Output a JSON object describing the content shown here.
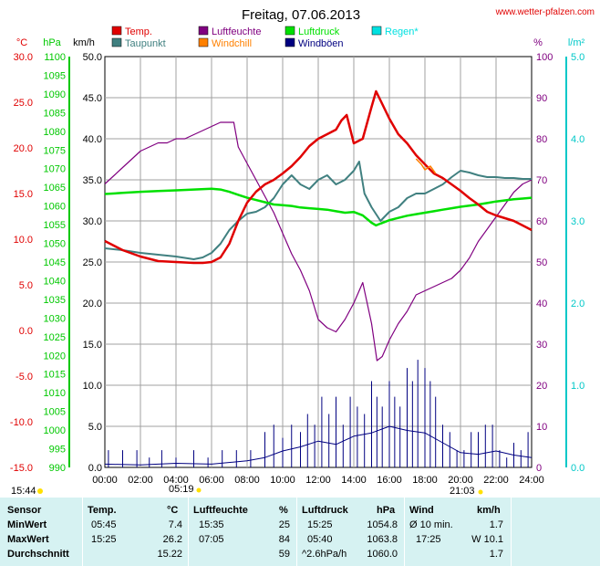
{
  "chart_data": {
    "type": "line",
    "title": "Freitag, 07.06.2013",
    "source": "www.wetter-pfalzen.com",
    "axes": {
      "temp": {
        "unit": "°C",
        "ticks": [
          "30.0",
          "25.0",
          "20.0",
          "15.0",
          "10.0",
          "5.0",
          "0.0",
          "-5.0",
          "-10.0",
          "-15.0"
        ],
        "range": [
          -15,
          30
        ],
        "color": "#e00000"
      },
      "pressure": {
        "unit": "hPa",
        "ticks": [
          "1100",
          "1095",
          "1090",
          "1085",
          "1080",
          "1075",
          "1070",
          "1065",
          "1060",
          "1055",
          "1050",
          "1045",
          "1040",
          "1035",
          "1030",
          "1025",
          "1020",
          "1015",
          "1010",
          "1005",
          "1000",
          "995",
          "990"
        ],
        "range": [
          990,
          1100
        ],
        "color": "#00c800"
      },
      "wind": {
        "unit": "km/h",
        "ticks": [
          "50.0",
          "45.0",
          "40.0",
          "35.0",
          "30.0",
          "25.0",
          "20.0",
          "15.0",
          "10.0",
          "5.0",
          "0.0"
        ],
        "range": [
          0,
          50
        ],
        "color": "#000000"
      },
      "humidity": {
        "unit": "%",
        "ticks": [
          "100",
          "90",
          "80",
          "70",
          "60",
          "50",
          "40",
          "30",
          "20",
          "10",
          "0"
        ],
        "range": [
          0,
          100
        ],
        "color": "#800080"
      },
      "rain": {
        "unit": "l/m²",
        "ticks": [
          "5.0",
          "4.0",
          "3.0",
          "2.0",
          "1.0",
          "0.0"
        ],
        "range": [
          0,
          5
        ],
        "color": "#00c8c8"
      }
    },
    "x_ticks": [
      "00:00",
      "02:00",
      "04:00",
      "06:00",
      "08:00",
      "10:00",
      "12:00",
      "14:00",
      "16:00",
      "18:00",
      "20:00",
      "22:00",
      "24:00"
    ],
    "sunrise": "05:19",
    "sunset": "21:03",
    "daylight_start": "15:44",
    "grid": true,
    "legend": [
      {
        "label": "Temp.",
        "color": "#e00000"
      },
      {
        "label": "Luftfeuchte",
        "color": "#800080"
      },
      {
        "label": "Luftdruck",
        "color": "#00e000"
      },
      {
        "label": "Regen*",
        "color": "#00e0e0"
      },
      {
        "label": "Taupunkt",
        "color": "#408080"
      },
      {
        "label": "Windchill",
        "color": "#ff8000"
      },
      {
        "label": "Windböen",
        "color": "#000080"
      }
    ],
    "series": [
      {
        "name": "Temp.",
        "x": [
          0,
          1,
          2,
          3,
          4,
          5,
          5.5,
          6,
          6.5,
          7,
          7.5,
          8,
          8.5,
          9,
          9.5,
          10,
          10.5,
          11,
          11.5,
          12,
          12.5,
          13,
          13.3,
          13.6,
          14,
          14.5,
          15,
          15.25,
          15.5,
          16,
          16.5,
          17,
          17.5,
          18,
          18.5,
          19,
          19.5,
          20,
          20.5,
          21,
          21.5,
          22,
          22.5,
          23,
          23.5,
          24
        ],
        "y": [
          9.8,
          8.8,
          8.1,
          7.6,
          7.5,
          7.4,
          7.4,
          7.5,
          8.0,
          9.5,
          12.0,
          14.0,
          15.2,
          16.0,
          16.5,
          17.2,
          18.0,
          19.0,
          20.2,
          21.0,
          21.5,
          22.0,
          23.0,
          23.6,
          20.5,
          21.0,
          24.5,
          26.2,
          25.2,
          23.2,
          21.5,
          20.5,
          19.2,
          18.2,
          17.2,
          16.7,
          16.0,
          15.3,
          14.5,
          13.8,
          13.0,
          12.6,
          12.3,
          12.0,
          11.5,
          11.0
        ]
      },
      {
        "name": "Taupunkt",
        "x": [
          0,
          1,
          2,
          3,
          4,
          5,
          5.5,
          6,
          6.5,
          7,
          7.5,
          8,
          8.5,
          9,
          9.5,
          10,
          10.5,
          11,
          11.5,
          12,
          12.5,
          13,
          13.5,
          14,
          14.3,
          14.6,
          15,
          15.5,
          16,
          16.5,
          17,
          17.5,
          18,
          18.5,
          19,
          19.5,
          20,
          20.5,
          21,
          21.5,
          22,
          22.5,
          23,
          23.5,
          24
        ],
        "y": [
          9.0,
          8.8,
          8.5,
          8.3,
          8.1,
          7.8,
          8.0,
          8.5,
          9.5,
          11.0,
          12.0,
          12.8,
          13.0,
          13.5,
          14.5,
          16.0,
          17.0,
          16.0,
          15.5,
          16.5,
          17.0,
          16.0,
          16.5,
          17.5,
          18.5,
          15.0,
          13.5,
          12.0,
          13.0,
          13.5,
          14.5,
          15.0,
          15.0,
          15.5,
          16.0,
          16.8,
          17.5,
          17.3,
          17.0,
          16.8,
          16.8,
          16.7,
          16.7,
          16.6,
          16.6
        ]
      },
      {
        "name": "Windchill",
        "x": [
          17.5,
          17.8,
          18.0,
          18.3,
          18.6
        ],
        "y": [
          18.8,
          18.2,
          17.6,
          18.0,
          17.2
        ]
      },
      {
        "name": "Luftfeuchte",
        "x": [
          0,
          0.5,
          1,
          1.5,
          2,
          2.5,
          3,
          3.5,
          4,
          4.5,
          5,
          5.5,
          6,
          6.5,
          7,
          7.25,
          7.5,
          8,
          8.5,
          9,
          9.5,
          10,
          10.5,
          11,
          11.5,
          12,
          12.5,
          13,
          13.5,
          14,
          14.5,
          15,
          15.3,
          15.6,
          16,
          16.5,
          17,
          17.5,
          18,
          18.5,
          19,
          19.5,
          20,
          20.5,
          21,
          21.5,
          22,
          22.5,
          23,
          23.5,
          24
        ],
        "y": [
          69,
          71,
          73,
          75,
          77,
          78,
          79,
          79,
          80,
          80,
          81,
          82,
          83,
          84,
          84,
          84,
          78,
          74,
          70,
          66,
          62,
          57,
          52,
          48,
          43,
          36,
          34,
          33,
          36,
          40,
          45,
          35,
          26,
          27,
          31,
          35,
          38,
          42,
          43,
          44,
          45,
          46,
          48,
          51,
          55,
          58,
          61,
          64,
          67,
          69,
          70
        ]
      },
      {
        "name": "Luftdruck",
        "x": [
          0,
          1,
          2,
          3,
          4,
          5,
          6,
          6.5,
          7,
          7.5,
          8,
          8.5,
          9,
          9.5,
          10,
          10.5,
          11,
          11.5,
          12,
          12.5,
          13,
          13.5,
          14,
          14.5,
          15,
          15.25,
          15.5,
          16,
          16.5,
          17,
          17.5,
          18,
          18.5,
          19,
          19.5,
          20,
          20.5,
          21,
          21.5,
          22,
          22.5,
          23,
          23.5,
          24
        ],
        "y": [
          1063.2,
          1063.5,
          1063.8,
          1064.0,
          1064.2,
          1064.4,
          1064.6,
          1064.4,
          1063.8,
          1063.0,
          1062.2,
          1061.6,
          1061.0,
          1060.4,
          1060.2,
          1060.0,
          1059.6,
          1059.4,
          1059.2,
          1059.0,
          1058.6,
          1058.2,
          1058.4,
          1057.5,
          1055.5,
          1054.8,
          1055.3,
          1056.2,
          1056.8,
          1057.4,
          1057.8,
          1058.2,
          1058.6,
          1059.0,
          1059.4,
          1059.8,
          1060.1,
          1060.4,
          1060.8,
          1061.2,
          1061.5,
          1061.8,
          1062.0,
          1062.2
        ]
      },
      {
        "name": "Windböen",
        "bars": true,
        "x": [
          0.2,
          1,
          1.8,
          2.5,
          3.2,
          4,
          5,
          5.8,
          6.6,
          7.4,
          8.2,
          9,
          9.5,
          10,
          10.5,
          11,
          11.4,
          11.8,
          12.2,
          12.6,
          13,
          13.4,
          13.8,
          14.2,
          14.6,
          15,
          15.3,
          15.6,
          16,
          16.3,
          16.6,
          17,
          17.3,
          17.6,
          18,
          18.3,
          18.6,
          19,
          19.4,
          19.8,
          20.2,
          20.6,
          21,
          21.4,
          21.8,
          22.2,
          22.6,
          23,
          23.4,
          23.8
        ],
        "y": [
          2.1,
          2.1,
          2.1,
          1.2,
          2.1,
          1.2,
          2.1,
          1.2,
          2.1,
          2.1,
          2.1,
          4.3,
          5.2,
          3.6,
          5.2,
          4.3,
          6.5,
          5.2,
          8.6,
          6.5,
          8.6,
          5.2,
          8.6,
          7.4,
          6.5,
          10.5,
          8.6,
          7.4,
          10.5,
          8.6,
          7.4,
          12.1,
          10.5,
          13.1,
          12.1,
          10.5,
          8.6,
          5.2,
          4.3,
          2.1,
          2.1,
          4.3,
          4.3,
          5.2,
          5.2,
          2.1,
          1.2,
          3.0,
          2.1,
          4.3
        ]
      },
      {
        "name": "Wind",
        "x": [
          0,
          2,
          4,
          6,
          8,
          9,
          10,
          11,
          12,
          13,
          14,
          15,
          16,
          17,
          18,
          19,
          20,
          21,
          22,
          23,
          24
        ],
        "y": [
          0.4,
          0.3,
          0.5,
          0.4,
          0.8,
          1.2,
          2.0,
          2.5,
          3.2,
          2.8,
          3.8,
          4.2,
          5.0,
          4.5,
          4.2,
          3.0,
          1.8,
          1.6,
          2.0,
          1.5,
          1.2
        ]
      }
    ]
  },
  "stats": {
    "headers": {
      "sensor": "Sensor",
      "temp": "Temp.",
      "temp_unit": "°C",
      "hum": "Luftfeuchte",
      "hum_unit": "%",
      "press": "Luftdruck",
      "press_unit": "hPa",
      "wind": "Wind",
      "wind_unit": "km/h"
    },
    "rows": [
      {
        "label": "MinWert",
        "temp_time": "05:45",
        "temp_val": "7.4",
        "hum_time": "15:35",
        "hum_val": "25",
        "press_time": "15:25",
        "press_val": "1054.8",
        "wind_time": "Ø 10 min.",
        "wind_val": "1.7"
      },
      {
        "label": "MaxWert",
        "temp_time": "15:25",
        "temp_val": "26.2",
        "hum_time": "07:05",
        "hum_val": "84",
        "press_time": "05:40",
        "press_val": "1063.8",
        "wind_time": "17:25",
        "wind_val": "W 10.1"
      },
      {
        "label": "Durchschnitt",
        "temp_time": "",
        "temp_val": "15.22",
        "hum_time": "",
        "hum_val": "59",
        "press_time": "^2.6hPa/h",
        "press_val": "1060.0",
        "wind_time": "",
        "wind_val": "1.7"
      }
    ]
  }
}
